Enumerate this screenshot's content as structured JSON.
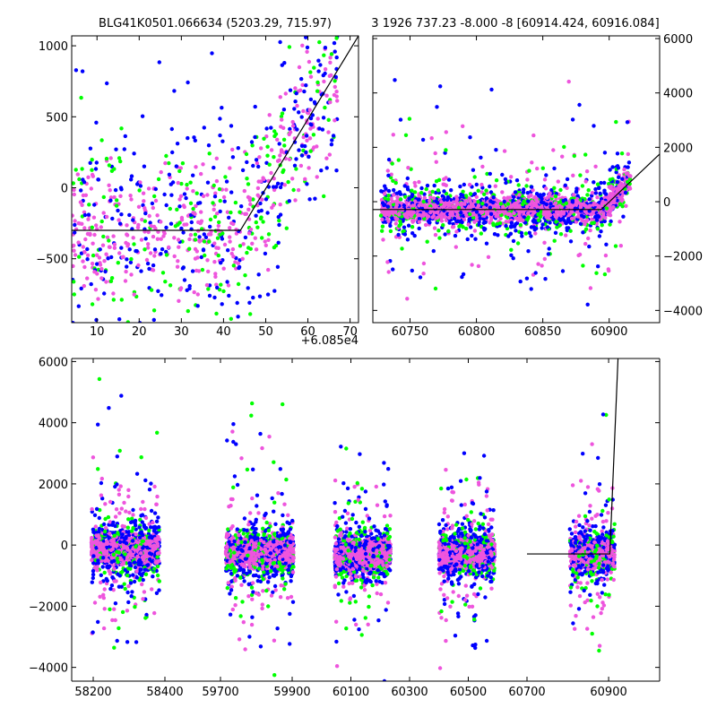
{
  "colors": {
    "series": [
      "#00ff00",
      "#0000ff",
      "#ee55dd"
    ],
    "model_line": "#000000",
    "background": "#ffffff"
  },
  "chart_data": [
    {
      "id": "zoom-rise",
      "type": "scatter",
      "title": "BLG41K0501.066634 (5203.29, 715.97)",
      "x_offset_label": "+6.085e4",
      "xlim": [
        4,
        72
      ],
      "ylim": [
        -950,
        1070
      ],
      "xticks": [
        10,
        20,
        30,
        40,
        50,
        60,
        70
      ],
      "yticks": [
        -500,
        0,
        500,
        1000
      ],
      "ytick_side": "left",
      "model_line": {
        "x": [
          4,
          44,
          72
        ],
        "y": [
          -300,
          -300,
          1070
        ]
      }
    },
    {
      "id": "last-season",
      "type": "scatter",
      "title": "3 1926 737.23 -8.000 -8 [60914.424, 60916.084]",
      "xlim": [
        60722,
        60938
      ],
      "ylim": [
        -4450,
        6100
      ],
      "xticks": [
        60750,
        60800,
        60850,
        60900
      ],
      "yticks": [
        -4000,
        -2000,
        0,
        2000,
        4000,
        6000
      ],
      "ytick_side": "right",
      "model_line": {
        "x": [
          60722,
          60894,
          60938
        ],
        "y": [
          -290,
          -290,
          1750
        ]
      }
    },
    {
      "id": "full-lightcurve",
      "type": "scatter",
      "title": "",
      "segmented_x": true,
      "ylim": [
        -4450,
        6100
      ],
      "xticks": [
        58200,
        58400,
        59700,
        59900,
        60100,
        60300,
        60500,
        60700,
        60900
      ],
      "yticks": [
        -4000,
        -2000,
        0,
        2000,
        4000,
        6000
      ],
      "ytick_side": "left",
      "model_line": {
        "x": [
          60700,
          60903,
          60923
        ],
        "y": [
          -290,
          -290,
          6100
        ]
      },
      "seasons": [
        {
          "center": 58290,
          "halfwidth": 95,
          "baseline": -150
        },
        {
          "center": 59810,
          "halfwidth": 95,
          "baseline": -250
        },
        {
          "center": 60140,
          "halfwidth": 95,
          "baseline": -300
        },
        {
          "center": 60495,
          "halfwidth": 95,
          "baseline": -300
        },
        {
          "center": 60860,
          "halfwidth": 55,
          "baseline": -300
        }
      ],
      "series": [
        {
          "name": "green",
          "color": "#00ff00"
        },
        {
          "name": "blue",
          "color": "#0000ff"
        },
        {
          "name": "magenta",
          "color": "#ee55dd"
        }
      ]
    }
  ]
}
